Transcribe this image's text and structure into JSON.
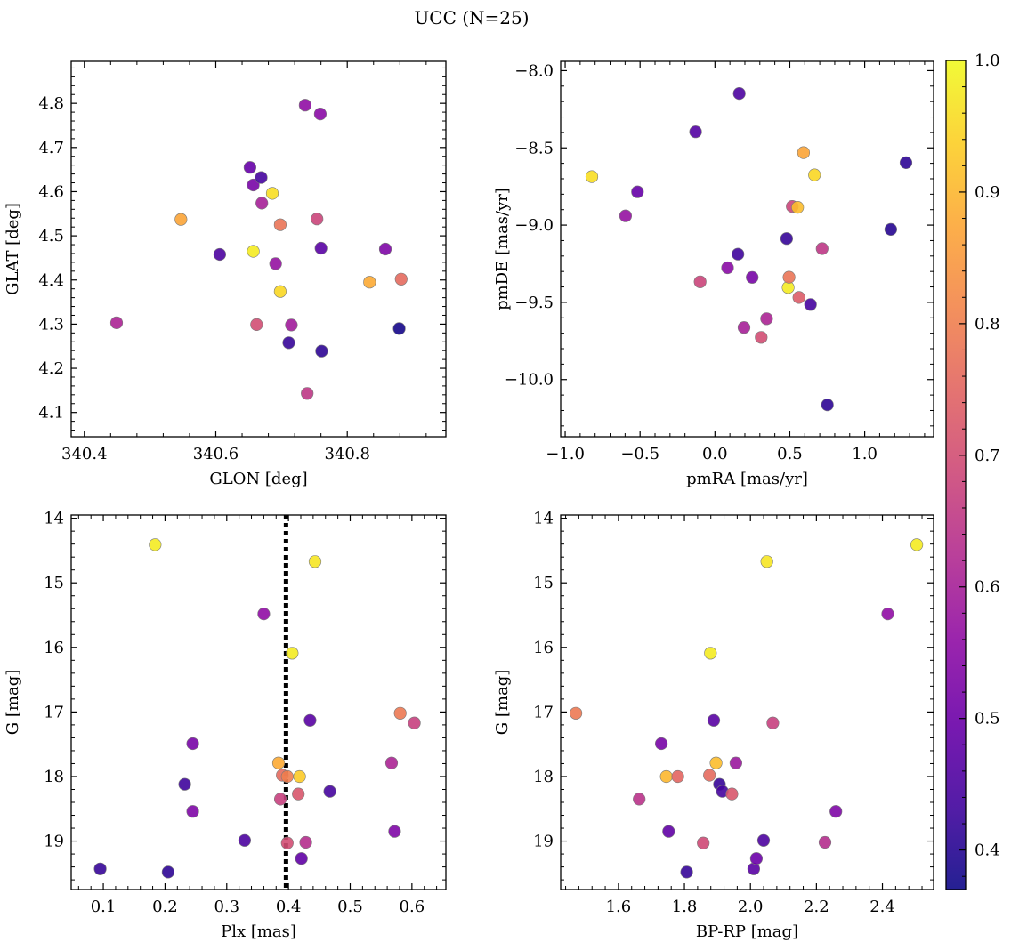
{
  "title": "UCC (N=25)",
  "colorbar": {
    "min": 0.37,
    "max": 1.0,
    "ticks": [
      0.4,
      0.5,
      0.6,
      0.7,
      0.8,
      0.9,
      1.0
    ],
    "tick_labels": [
      "0.4",
      "0.5",
      "0.6",
      "0.7",
      "0.8",
      "0.9",
      "1.0"
    ],
    "colormap": "plasma"
  },
  "chart_data": [
    {
      "type": "scatter",
      "xlabel": "GLON [deg]",
      "ylabel": "GLAT [deg]",
      "xlim": [
        340.38,
        340.95
      ],
      "ylim": [
        4.045,
        4.895
      ],
      "xticks": [
        340.4,
        340.6,
        340.8
      ],
      "xtick_labels": [
        "340.4",
        "340.6",
        "340.8"
      ],
      "yticks": [
        4.1,
        4.2,
        4.3,
        4.4,
        4.5,
        4.6,
        4.7,
        4.8
      ],
      "ytick_labels": [
        "4.1",
        "4.2",
        "4.3",
        "4.4",
        "4.5",
        "4.6",
        "4.7",
        "4.8"
      ],
      "points": [
        {
          "x": 340.449,
          "y": 4.303,
          "c": 0.61
        },
        {
          "x": 340.547,
          "y": 4.537,
          "c": 0.87
        },
        {
          "x": 340.606,
          "y": 4.458,
          "c": 0.45
        },
        {
          "x": 340.652,
          "y": 4.655,
          "c": 0.49
        },
        {
          "x": 340.657,
          "y": 4.615,
          "c": 0.52
        },
        {
          "x": 340.657,
          "y": 4.465,
          "c": 0.98
        },
        {
          "x": 340.662,
          "y": 4.299,
          "c": 0.7
        },
        {
          "x": 340.669,
          "y": 4.632,
          "c": 0.44
        },
        {
          "x": 340.67,
          "y": 4.574,
          "c": 0.6
        },
        {
          "x": 340.686,
          "y": 4.596,
          "c": 0.96
        },
        {
          "x": 340.691,
          "y": 4.437,
          "c": 0.57
        },
        {
          "x": 340.698,
          "y": 4.525,
          "c": 0.78
        },
        {
          "x": 340.698,
          "y": 4.374,
          "c": 0.95
        },
        {
          "x": 340.711,
          "y": 4.258,
          "c": 0.42
        },
        {
          "x": 340.715,
          "y": 4.298,
          "c": 0.59
        },
        {
          "x": 340.736,
          "y": 4.796,
          "c": 0.56
        },
        {
          "x": 340.739,
          "y": 4.143,
          "c": 0.65
        },
        {
          "x": 340.754,
          "y": 4.538,
          "c": 0.68
        },
        {
          "x": 340.759,
          "y": 4.776,
          "c": 0.55
        },
        {
          "x": 340.76,
          "y": 4.472,
          "c": 0.47
        },
        {
          "x": 340.761,
          "y": 4.239,
          "c": 0.41
        },
        {
          "x": 340.834,
          "y": 4.395,
          "c": 0.88
        },
        {
          "x": 340.858,
          "y": 4.47,
          "c": 0.53
        },
        {
          "x": 340.879,
          "y": 4.29,
          "c": 0.38
        },
        {
          "x": 340.882,
          "y": 4.402,
          "c": 0.76
        }
      ]
    },
    {
      "type": "scatter",
      "xlabel": "pmRA [mas/yr]",
      "ylabel": "pmDE [mas/yr]",
      "xlim": [
        -1.03,
        1.46
      ],
      "ylim": [
        -10.37,
        -7.94
      ],
      "xticks": [
        -1.0,
        -0.5,
        0.0,
        0.5,
        1.0
      ],
      "xtick_labels": [
        "−1.0",
        "−0.5",
        "0.0",
        "0.5",
        "1.0"
      ],
      "yticks": [
        -10.0,
        -9.5,
        -9.0,
        -8.5,
        -8.0
      ],
      "ytick_labels": [
        "−10.0",
        "−9.5",
        "−9.0",
        "−8.5",
        "−8.0"
      ],
      "points": [
        {
          "x": -0.822,
          "y": -8.686,
          "c": 0.96
        },
        {
          "x": -0.597,
          "y": -8.94,
          "c": 0.57
        },
        {
          "x": -0.517,
          "y": -8.785,
          "c": 0.49
        },
        {
          "x": -0.129,
          "y": -8.396,
          "c": 0.46
        },
        {
          "x": -0.099,
          "y": -9.367,
          "c": 0.68
        },
        {
          "x": 0.084,
          "y": -9.276,
          "c": 0.55
        },
        {
          "x": 0.154,
          "y": -9.188,
          "c": 0.43
        },
        {
          "x": 0.163,
          "y": -8.148,
          "c": 0.45
        },
        {
          "x": 0.194,
          "y": -9.663,
          "c": 0.6
        },
        {
          "x": 0.249,
          "y": -9.338,
          "c": 0.52
        },
        {
          "x": 0.309,
          "y": -9.727,
          "c": 0.7
        },
        {
          "x": 0.345,
          "y": -9.606,
          "c": 0.61
        },
        {
          "x": 0.479,
          "y": -9.087,
          "c": 0.42
        },
        {
          "x": 0.489,
          "y": -9.404,
          "c": 0.98
        },
        {
          "x": 0.495,
          "y": -9.337,
          "c": 0.78
        },
        {
          "x": 0.516,
          "y": -8.879,
          "c": 0.68
        },
        {
          "x": 0.552,
          "y": -8.885,
          "c": 0.91
        },
        {
          "x": 0.561,
          "y": -9.468,
          "c": 0.73
        },
        {
          "x": 0.592,
          "y": -8.531,
          "c": 0.87
        },
        {
          "x": 0.638,
          "y": -9.514,
          "c": 0.44
        },
        {
          "x": 0.665,
          "y": -8.675,
          "c": 0.95
        },
        {
          "x": 0.716,
          "y": -9.152,
          "c": 0.65
        },
        {
          "x": 0.751,
          "y": -10.163,
          "c": 0.41
        },
        {
          "x": 1.174,
          "y": -9.028,
          "c": 0.4
        },
        {
          "x": 1.276,
          "y": -8.596,
          "c": 0.41
        }
      ]
    },
    {
      "type": "scatter",
      "xlabel": "Plx [mas]",
      "ylabel": "G [mag]",
      "xlim": [
        0.048,
        0.655
      ],
      "ylim": [
        19.75,
        13.95
      ],
      "y_inverted": true,
      "xticks": [
        0.1,
        0.2,
        0.3,
        0.4,
        0.5,
        0.6
      ],
      "xtick_labels": [
        "0.1",
        "0.2",
        "0.3",
        "0.4",
        "0.5",
        "0.6"
      ],
      "yticks": [
        14,
        15,
        16,
        17,
        18,
        19
      ],
      "ytick_labels": [
        "14",
        "15",
        "16",
        "17",
        "18",
        "19"
      ],
      "vline": {
        "x": 0.396,
        "style": "dotted",
        "color": "#000000"
      },
      "points": [
        {
          "x": 0.095,
          "y": 19.43,
          "c": 0.42
        },
        {
          "x": 0.184,
          "y": 14.41,
          "c": 0.98
        },
        {
          "x": 0.205,
          "y": 19.48,
          "c": 0.41
        },
        {
          "x": 0.232,
          "y": 18.12,
          "c": 0.43
        },
        {
          "x": 0.245,
          "y": 17.49,
          "c": 0.52
        },
        {
          "x": 0.245,
          "y": 18.54,
          "c": 0.53
        },
        {
          "x": 0.329,
          "y": 18.99,
          "c": 0.45
        },
        {
          "x": 0.36,
          "y": 15.48,
          "c": 0.56
        },
        {
          "x": 0.384,
          "y": 17.79,
          "c": 0.88
        },
        {
          "x": 0.387,
          "y": 18.35,
          "c": 0.67
        },
        {
          "x": 0.39,
          "y": 17.98,
          "c": 0.76
        },
        {
          "x": 0.398,
          "y": 18.0,
          "c": 0.8
        },
        {
          "x": 0.398,
          "y": 19.03,
          "c": 0.7
        },
        {
          "x": 0.406,
          "y": 16.09,
          "c": 0.98
        },
        {
          "x": 0.416,
          "y": 18.27,
          "c": 0.72
        },
        {
          "x": 0.418,
          "y": 18.0,
          "c": 0.93
        },
        {
          "x": 0.421,
          "y": 19.27,
          "c": 0.48
        },
        {
          "x": 0.428,
          "y": 19.02,
          "c": 0.63
        },
        {
          "x": 0.435,
          "y": 17.13,
          "c": 0.47
        },
        {
          "x": 0.443,
          "y": 14.67,
          "c": 0.97
        },
        {
          "x": 0.467,
          "y": 18.23,
          "c": 0.44
        },
        {
          "x": 0.567,
          "y": 17.79,
          "c": 0.61
        },
        {
          "x": 0.572,
          "y": 18.85,
          "c": 0.53
        },
        {
          "x": 0.581,
          "y": 17.02,
          "c": 0.79
        },
        {
          "x": 0.604,
          "y": 17.17,
          "c": 0.67
        }
      ]
    },
    {
      "type": "scatter",
      "xlabel": "BP-RP [mag]",
      "ylabel": "G [mag]",
      "xlim": [
        1.425,
        2.555
      ],
      "ylim": [
        19.75,
        13.95
      ],
      "y_inverted": true,
      "xticks": [
        1.6,
        1.8,
        2.0,
        2.2,
        2.4
      ],
      "xtick_labels": [
        "1.6",
        "1.8",
        "2.0",
        "2.2",
        "2.4"
      ],
      "yticks": [
        14,
        15,
        16,
        17,
        18,
        19
      ],
      "ytick_labels": [
        "14",
        "15",
        "16",
        "17",
        "18",
        "19"
      ],
      "points": [
        {
          "x": 1.471,
          "y": 17.02,
          "c": 0.79
        },
        {
          "x": 1.663,
          "y": 18.35,
          "c": 0.64
        },
        {
          "x": 1.73,
          "y": 17.49,
          "c": 0.52
        },
        {
          "x": 1.745,
          "y": 18.0,
          "c": 0.9
        },
        {
          "x": 1.752,
          "y": 18.85,
          "c": 0.48
        },
        {
          "x": 1.78,
          "y": 18.0,
          "c": 0.75
        },
        {
          "x": 1.807,
          "y": 19.48,
          "c": 0.42
        },
        {
          "x": 1.857,
          "y": 19.03,
          "c": 0.69
        },
        {
          "x": 1.876,
          "y": 17.98,
          "c": 0.76
        },
        {
          "x": 1.879,
          "y": 16.09,
          "c": 0.98
        },
        {
          "x": 1.889,
          "y": 17.13,
          "c": 0.47
        },
        {
          "x": 1.896,
          "y": 17.79,
          "c": 0.91
        },
        {
          "x": 1.906,
          "y": 18.12,
          "c": 0.42
        },
        {
          "x": 1.915,
          "y": 18.23,
          "c": 0.44
        },
        {
          "x": 1.944,
          "y": 18.27,
          "c": 0.72
        },
        {
          "x": 1.956,
          "y": 17.79,
          "c": 0.58
        },
        {
          "x": 2.01,
          "y": 19.43,
          "c": 0.47
        },
        {
          "x": 2.018,
          "y": 19.27,
          "c": 0.5
        },
        {
          "x": 2.04,
          "y": 18.99,
          "c": 0.45
        },
        {
          "x": 2.05,
          "y": 14.67,
          "c": 0.97
        },
        {
          "x": 2.068,
          "y": 17.17,
          "c": 0.67
        },
        {
          "x": 2.226,
          "y": 19.02,
          "c": 0.63
        },
        {
          "x": 2.259,
          "y": 18.54,
          "c": 0.53
        },
        {
          "x": 2.416,
          "y": 15.48,
          "c": 0.56
        },
        {
          "x": 2.504,
          "y": 14.41,
          "c": 0.98
        }
      ]
    }
  ]
}
